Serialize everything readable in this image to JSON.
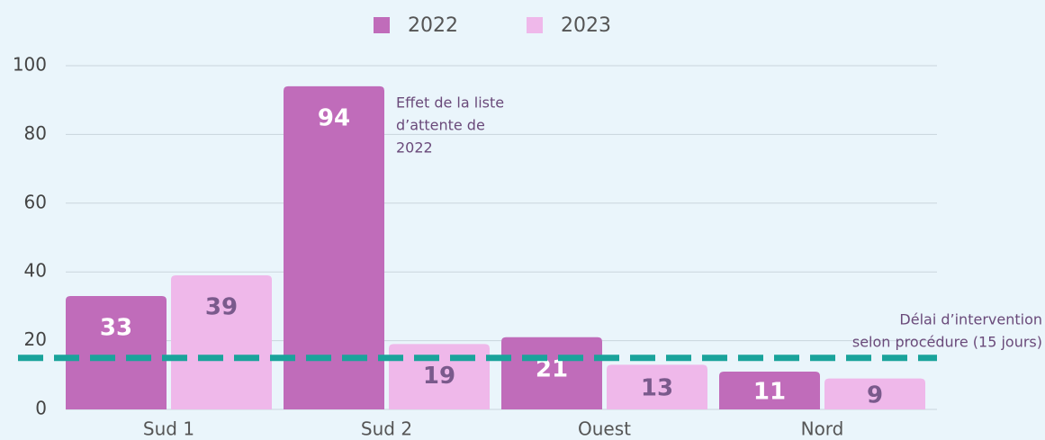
{
  "chart_data": {
    "type": "bar",
    "categories": [
      "Sud 1",
      "Sud 2",
      "Ouest",
      "Nord"
    ],
    "series": [
      {
        "name": "2022",
        "color": "#c06cba",
        "values": [
          33,
          94,
          21,
          11
        ]
      },
      {
        "name": "2023",
        "color": "#efb8ea",
        "values": [
          39,
          19,
          13,
          9
        ]
      }
    ],
    "ylim": [
      0,
      100
    ],
    "yticks": [
      0,
      20,
      40,
      60,
      80,
      100
    ],
    "grid": true,
    "legend": "top",
    "annotations": [
      {
        "text": [
          "Effet de la liste",
          "d’attente de",
          "2022"
        ]
      }
    ],
    "reference_line": {
      "value": 15,
      "color": "#1aa39b",
      "label": [
        "Délai d’intervention",
        "selon procédure (15 jours)"
      ]
    }
  }
}
